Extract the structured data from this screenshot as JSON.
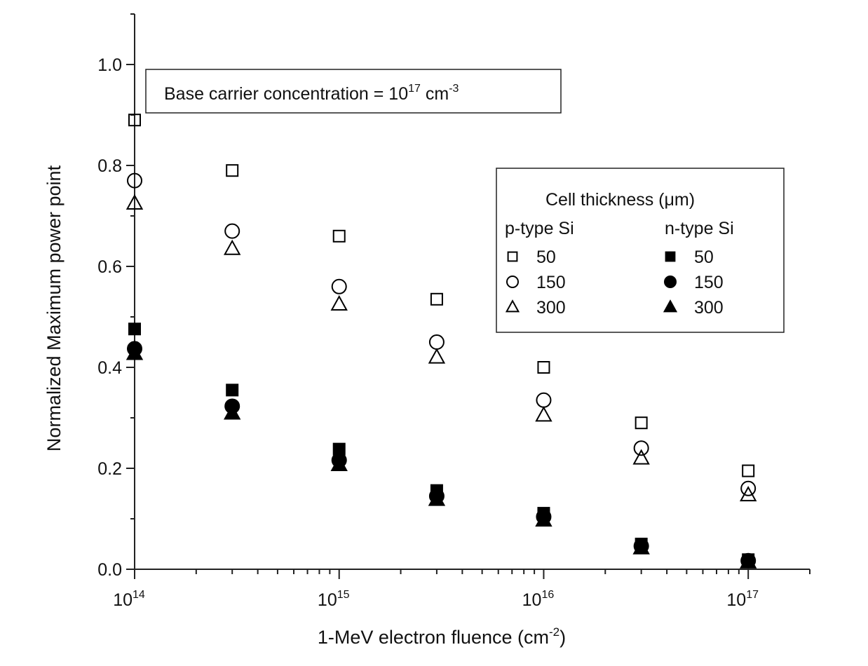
{
  "chart_data": {
    "type": "scatter",
    "title": "",
    "xlabel": "1-MeV electron fluence (cm",
    "xlabel_sup": "-2",
    "xlabel_end": ")",
    "ylabel": "Normalized Maximum power point",
    "xscale": "log",
    "xlim": [
      100000000000000.0,
      2e+17
    ],
    "ylim": [
      0,
      1.1
    ],
    "x_ticks": [
      {
        "value": 100000000000000.0,
        "base": "10",
        "exp": "14"
      },
      {
        "value": 1000000000000000.0,
        "base": "10",
        "exp": "15"
      },
      {
        "value": 1e+16,
        "base": "10",
        "exp": "16"
      },
      {
        "value": 1e+17,
        "base": "10",
        "exp": "17"
      }
    ],
    "y_ticks": [
      {
        "value": 0.0,
        "label": "0.0"
      },
      {
        "value": 0.2,
        "label": "0.2"
      },
      {
        "value": 0.4,
        "label": "0.4"
      },
      {
        "value": 0.6,
        "label": "0.6"
      },
      {
        "value": 0.8,
        "label": "0.8"
      },
      {
        "value": 1.0,
        "label": "1.0"
      }
    ],
    "annotation": {
      "text": "Base carrier concentration = 10",
      "sup1": "17",
      "mid": " cm",
      "sup2": "-3"
    },
    "legend": {
      "title": "Cell thickness (μm)",
      "col1": "p-type Si",
      "col2": "n-type Si",
      "placement": "right"
    },
    "x": [
      100000000000000.0,
      300000000000000.0,
      1000000000000000.0,
      3000000000000000.0,
      1e+16,
      3e+16,
      1e+17
    ],
    "series": [
      {
        "name": "50",
        "group": "p-type Si",
        "marker": "square",
        "filled": false,
        "values": [
          0.89,
          0.79,
          0.66,
          0.535,
          0.4,
          0.29,
          0.195
        ]
      },
      {
        "name": "150",
        "group": "p-type Si",
        "marker": "circle",
        "filled": false,
        "values": [
          0.77,
          0.67,
          0.56,
          0.45,
          0.335,
          0.24,
          0.16
        ]
      },
      {
        "name": "300",
        "group": "p-type Si",
        "marker": "triangle",
        "filled": false,
        "values": [
          0.725,
          0.635,
          0.525,
          0.42,
          0.305,
          0.22,
          0.147
        ]
      },
      {
        "name": "50",
        "group": "n-type Si",
        "marker": "square",
        "filled": true,
        "values": [
          0.476,
          0.355,
          0.238,
          0.156,
          0.111,
          0.05,
          0.019
        ]
      },
      {
        "name": "150",
        "group": "n-type Si",
        "marker": "circle",
        "filled": true,
        "values": [
          0.437,
          0.323,
          0.216,
          0.145,
          0.104,
          0.046,
          0.017
        ]
      },
      {
        "name": "300",
        "group": "n-type Si",
        "marker": "triangle",
        "filled": true,
        "values": [
          0.427,
          0.309,
          0.207,
          0.138,
          0.097,
          0.042,
          0.014
        ]
      }
    ]
  }
}
